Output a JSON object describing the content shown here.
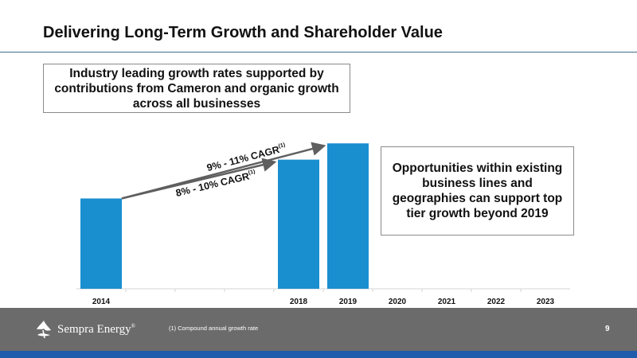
{
  "slide": {
    "title": "Delivering Long-Term Growth and Shareholder Value",
    "left_box": "Industry leading growth rates supported by contributions from Cameron and organic growth across all businesses",
    "right_box": "Opportunities within existing business lines and geographies can support top tier growth beyond 2019"
  },
  "chart_data": {
    "type": "bar",
    "categories": [
      "2014",
      "",
      "",
      "",
      "2018",
      "2019",
      "2020",
      "2021",
      "2022",
      "2023"
    ],
    "values": [
      1.0,
      null,
      null,
      null,
      1.43,
      1.61,
      null,
      null,
      null,
      null
    ],
    "bar_color": "#1a8fd0",
    "ylim": [
      0,
      1.7
    ],
    "grid": false,
    "y_axis_labels": false,
    "annotations": [
      {
        "text": "8% - 10% CAGR",
        "superscript": "(1)",
        "from": "2014",
        "to": "2018"
      },
      {
        "text": "9% - 11% CAGR",
        "superscript": "(1)",
        "from": "2014",
        "to": "2019"
      }
    ]
  },
  "footer": {
    "logo_text": "Sempra Energy",
    "logo_mark": "®",
    "logo_icon": "sempra-flame-icon",
    "footnote": "(1)  Compound annual growth rate",
    "page_number": "9",
    "background_color": "#6b6b6b",
    "band_color": "#1f5cab"
  }
}
